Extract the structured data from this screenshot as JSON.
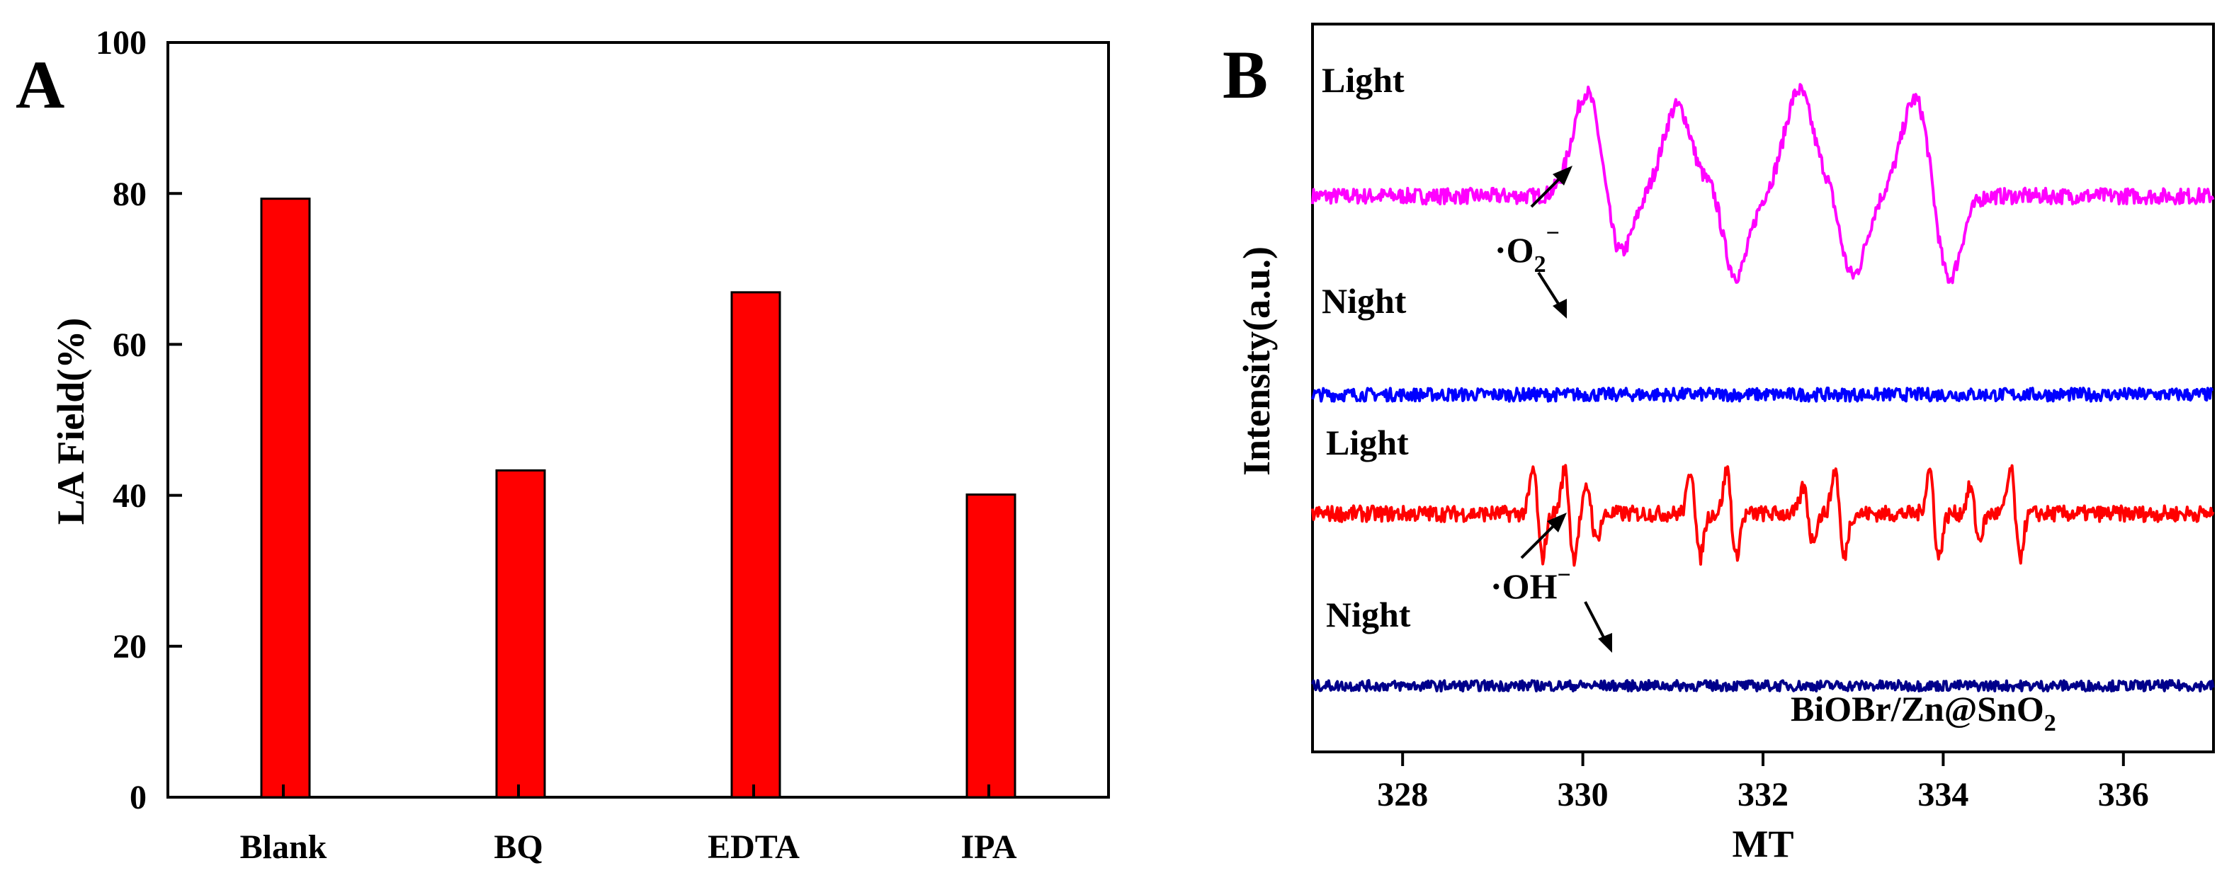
{
  "chart_data": [
    {
      "panel_label": "A",
      "type": "bar",
      "title": "",
      "xlabel": "",
      "ylabel": "LA Field(%)",
      "categories": [
        "Blank",
        "BQ",
        "EDTA",
        "IPA"
      ],
      "values": [
        79.3,
        43.3,
        66.9,
        40.1
      ],
      "ylim": [
        0,
        100
      ],
      "yticks": [
        "0",
        "20",
        "40",
        "60",
        "80",
        "100"
      ],
      "bar_color": "#ff0000",
      "grid": false
    },
    {
      "panel_label": "B",
      "type": "line",
      "title": "",
      "xlabel": "MT",
      "ylabel": "Intensity(a.u.)",
      "xlim": [
        327,
        337
      ],
      "xticks": [
        "328",
        "330",
        "332",
        "334",
        "336"
      ],
      "sample_label": "BiOBr/Zn@SnO",
      "sample_subscript": "2",
      "series": [
        {
          "name": "Light",
          "species": "O2-",
          "color": "#ff00ff",
          "baseline": 4.2,
          "peak_height": 0.8,
          "peaks": [
            [
              330.05,
              1.0
            ],
            [
              331.05,
              0.85
            ],
            [
              332.4,
              1.0
            ],
            [
              333.7,
              0.95
            ]
          ],
          "troughs": [
            [
              330.4,
              -0.6
            ],
            [
              331.7,
              -0.75
            ],
            [
              333.0,
              -0.75
            ],
            [
              334.05,
              -0.85
            ]
          ]
        },
        {
          "name": "Night",
          "species": "O2-",
          "color": "#0000ff",
          "baseline": 2.7,
          "noise": 0.05
        },
        {
          "name": "Light",
          "species": "OH-",
          "color": "#ff0000",
          "baseline": 1.8,
          "peak_height": 0.55,
          "lines": [
            329.5,
            329.85,
            330.1,
            331.25,
            331.65,
            332.5,
            332.85,
            333.9,
            334.35,
            334.8
          ]
        },
        {
          "name": "Night",
          "species": "OH-",
          "color": "#00008b",
          "baseline": 0.5,
          "noise": 0.04
        }
      ],
      "annotations": [
        {
          "text": "·O",
          "subscript": "2",
          "superscript": "−"
        },
        {
          "text": "·OH",
          "superscript": "−"
        }
      ]
    }
  ]
}
